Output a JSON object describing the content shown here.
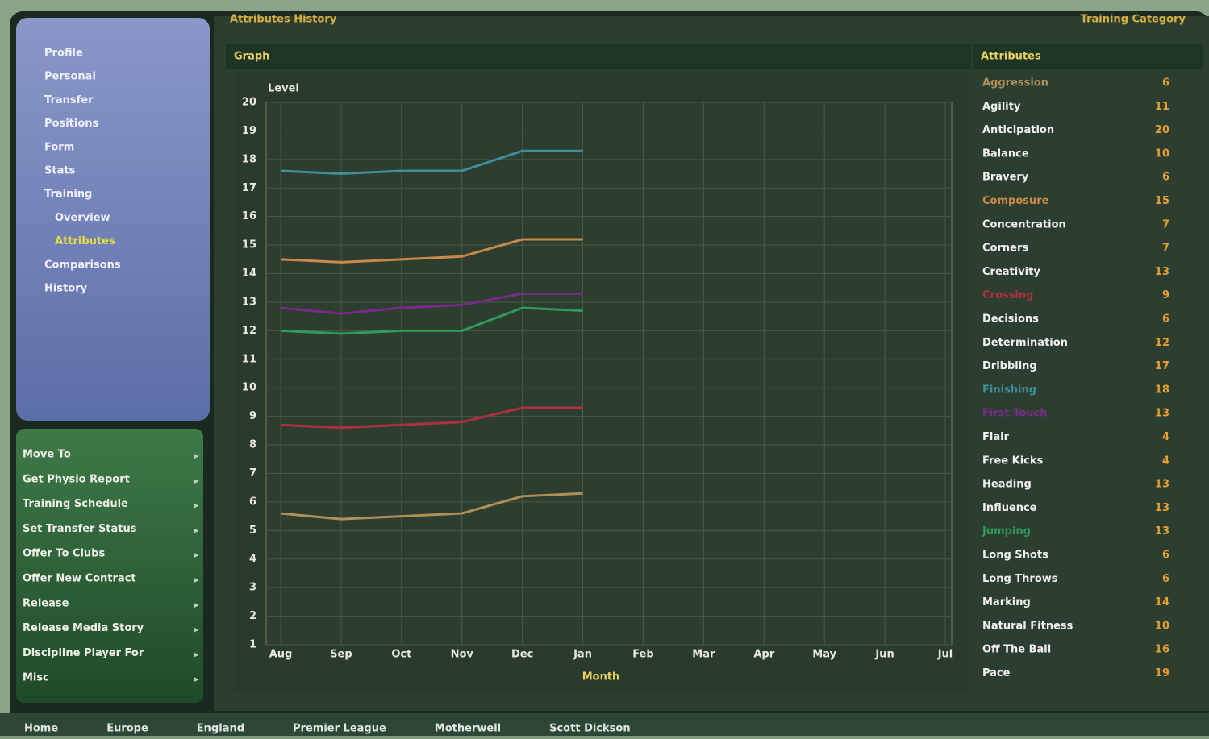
{
  "header": {
    "title": "Attributes History",
    "right": "Training Category"
  },
  "nav": [
    "Profile",
    "Personal",
    "Transfer",
    "Positions",
    "Form",
    "Stats",
    "Training",
    "Overview",
    "Attributes",
    "Comparisons",
    "History"
  ],
  "actions": [
    "Move To",
    "Get Physio Report",
    "Training Schedule",
    "Set Transfer Status",
    "Offer To Clubs",
    "Offer New Contract",
    "Release",
    "Release Media Story",
    "Discipline Player For",
    "Misc"
  ],
  "graph_header": "Graph",
  "attributes_header": "Attributes",
  "attributes": [
    {
      "name": "Aggression",
      "value": 6
    },
    {
      "name": "Agility",
      "value": 11
    },
    {
      "name": "Anticipation",
      "value": 20
    },
    {
      "name": "Balance",
      "value": 10
    },
    {
      "name": "Bravery",
      "value": 6
    },
    {
      "name": "Composure",
      "value": 15
    },
    {
      "name": "Concentration",
      "value": 7
    },
    {
      "name": "Corners",
      "value": 7
    },
    {
      "name": "Creativity",
      "value": 13
    },
    {
      "name": "Crossing",
      "value": 9
    },
    {
      "name": "Decisions",
      "value": 6
    },
    {
      "name": "Determination",
      "value": 12
    },
    {
      "name": "Dribbling",
      "value": 17
    },
    {
      "name": "Finishing",
      "value": 18
    },
    {
      "name": "First Touch",
      "value": 13
    },
    {
      "name": "Flair",
      "value": 4
    },
    {
      "name": "Free Kicks",
      "value": 4
    },
    {
      "name": "Heading",
      "value": 13
    },
    {
      "name": "Influence",
      "value": 13
    },
    {
      "name": "Jumping",
      "value": 13
    },
    {
      "name": "Long Shots",
      "value": 6
    },
    {
      "name": "Long Throws",
      "value": 6
    },
    {
      "name": "Marking",
      "value": 14
    },
    {
      "name": "Natural Fitness",
      "value": 10
    },
    {
      "name": "Off The Ball",
      "value": 16
    },
    {
      "name": "Pace",
      "value": 19
    }
  ],
  "chart_data": {
    "type": "line",
    "y_label": "Level",
    "x_label": "Month",
    "categories": [
      "Aug",
      "Sep",
      "Oct",
      "Nov",
      "Dec",
      "Jan",
      "Feb",
      "Mar",
      "Apr",
      "May",
      "Jun",
      "Jul"
    ],
    "ylim": [
      1,
      20
    ],
    "yticks": [
      1,
      2,
      3,
      4,
      5,
      6,
      7,
      8,
      9,
      10,
      11,
      12,
      13,
      14,
      15,
      16,
      17,
      18,
      19,
      20
    ],
    "grid": true,
    "series": [
      {
        "name": "Finishing",
        "color": "#3f8f9a",
        "values": [
          17.6,
          17.5,
          17.6,
          17.6,
          18.3,
          18.3,
          null,
          null,
          null,
          null,
          null,
          null
        ]
      },
      {
        "name": "Composure",
        "color": "#c98a4a",
        "values": [
          14.5,
          14.4,
          14.5,
          14.6,
          15.2,
          15.2,
          null,
          null,
          null,
          null,
          null,
          null
        ]
      },
      {
        "name": "First Touch",
        "color": "#7a2a8a",
        "values": [
          12.8,
          12.6,
          12.8,
          12.9,
          13.3,
          13.3,
          null,
          null,
          null,
          null,
          null,
          null
        ]
      },
      {
        "name": "Jumping",
        "color": "#2f9a5a",
        "values": [
          12.0,
          11.9,
          12.0,
          12.0,
          12.8,
          12.7,
          null,
          null,
          null,
          null,
          null,
          null
        ]
      },
      {
        "name": "Crossing",
        "color": "#b03040",
        "values": [
          8.7,
          8.6,
          8.7,
          8.8,
          9.3,
          9.3,
          null,
          null,
          null,
          null,
          null,
          null
        ]
      },
      {
        "name": "Aggression",
        "color": "#b0905a",
        "values": [
          5.6,
          5.4,
          5.5,
          5.6,
          6.2,
          6.3,
          null,
          null,
          null,
          null,
          null,
          null
        ]
      }
    ]
  },
  "breadcrumbs": [
    "Home",
    "Europe",
    "England",
    "Premier League",
    "Motherwell",
    "Scott Dickson"
  ]
}
